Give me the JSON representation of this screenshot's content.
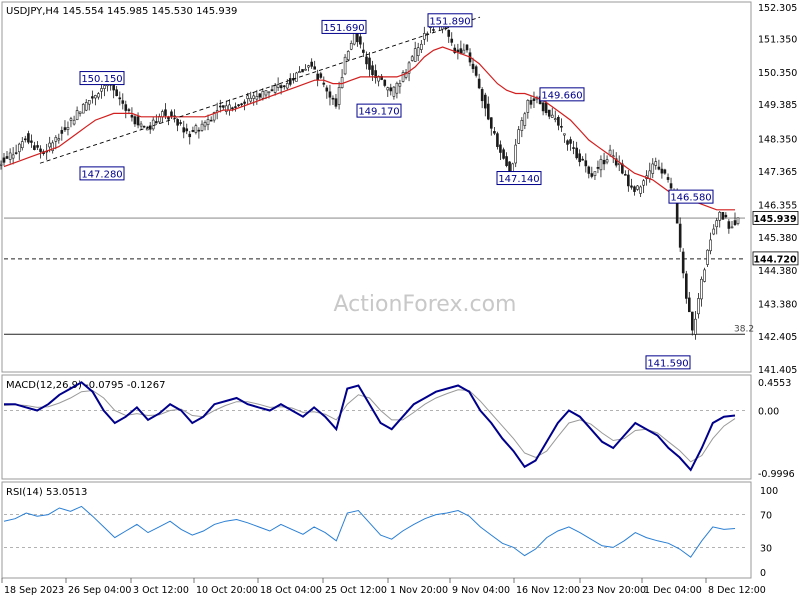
{
  "chart_data": [
    {
      "type": "candlestick",
      "panel": "price",
      "symbol_line": "USDJPY,H4  145.554 145.985 145.530 145.939",
      "watermark": "ActionForex.com",
      "ylim": [
        141.405,
        152.305
      ],
      "y_ticks": [
        "152.305",
        "151.350",
        "150.350",
        "149.385",
        "148.350",
        "147.365",
        "146.355",
        "145.380",
        "144.380",
        "143.380",
        "142.405",
        "141.405"
      ],
      "current_price": "145.939",
      "level_labels": {
        "support": "144.720",
        "fib": "38.2"
      },
      "annotations": [
        "150.150",
        "147.280",
        "151.690",
        "151.890",
        "149.170",
        "149.660",
        "147.140",
        "146.580",
        "141.590"
      ],
      "series": [
        {
          "name": "price",
          "values": [
            147.8,
            148.0,
            148.4,
            148.1,
            147.9,
            148.2,
            148.6,
            148.9,
            149.2,
            149.5,
            149.8,
            150.0,
            149.6,
            149.3,
            148.9,
            148.6,
            148.8,
            149.1,
            149.0,
            148.7,
            148.5,
            148.7,
            148.9,
            149.2,
            149.3,
            149.4,
            149.5,
            149.6,
            149.7,
            149.8,
            149.9,
            150.1,
            150.3,
            150.6,
            150.2,
            149.8,
            149.3,
            150.8,
            151.5,
            150.9,
            150.3,
            150.0,
            149.7,
            150.1,
            150.6,
            151.1,
            151.6,
            151.8,
            151.6,
            150.9,
            151.1,
            150.5,
            149.6,
            148.6,
            148.0,
            147.3,
            148.5,
            149.4,
            149.5,
            149.2,
            148.9,
            148.4,
            148.0,
            147.6,
            147.3,
            147.6,
            147.9,
            147.5,
            147.0,
            146.8,
            147.2,
            147.6,
            147.3,
            146.6,
            144.2,
            142.5,
            144.0,
            145.4,
            146.2,
            145.7,
            145.939
          ]
        },
        {
          "name": "MA",
          "values": [
            147.5,
            147.6,
            147.7,
            147.8,
            147.9,
            148.0,
            148.1,
            148.3,
            148.5,
            148.7,
            148.9,
            149.0,
            149.1,
            149.1,
            149.1,
            149.0,
            149.0,
            149.0,
            149.0,
            149.0,
            149.0,
            149.0,
            149.0,
            149.1,
            149.2,
            149.2,
            149.3,
            149.4,
            149.5,
            149.6,
            149.7,
            149.8,
            149.9,
            150.0,
            150.1,
            150.1,
            150.0,
            150.0,
            150.1,
            150.2,
            150.2,
            150.2,
            150.2,
            150.2,
            150.3,
            150.5,
            150.8,
            151.0,
            151.1,
            151.0,
            150.9,
            150.8,
            150.6,
            150.3,
            150.0,
            149.8,
            149.7,
            149.7,
            149.6,
            149.5,
            149.3,
            149.1,
            148.9,
            148.6,
            148.3,
            148.1,
            147.9,
            147.7,
            147.5,
            147.3,
            147.2,
            147.1,
            146.9,
            146.7,
            146.6,
            146.5,
            146.4,
            146.3,
            146.2,
            146.2,
            146.2
          ]
        }
      ]
    },
    {
      "type": "line",
      "panel": "macd",
      "label": "MACD(12,26,9) -0.0795 -0.1267",
      "y_ticks": [
        "0.4553",
        "0.00",
        "-0.9996"
      ],
      "series": [
        {
          "name": "MACD",
          "values": [
            0.1,
            0.1,
            0.05,
            0.0,
            0.1,
            0.25,
            0.35,
            0.45,
            0.3,
            0.0,
            -0.2,
            -0.1,
            0.05,
            -0.15,
            -0.05,
            0.1,
            0.0,
            -0.2,
            -0.1,
            0.1,
            0.15,
            0.2,
            0.1,
            0.05,
            0.0,
            0.1,
            0.0,
            -0.1,
            0.05,
            -0.1,
            -0.3,
            0.35,
            0.4,
            0.1,
            -0.2,
            -0.3,
            -0.1,
            0.1,
            0.2,
            0.3,
            0.35,
            0.4,
            0.3,
            0.0,
            -0.2,
            -0.45,
            -0.65,
            -0.9,
            -0.8,
            -0.5,
            -0.2,
            0.0,
            -0.1,
            -0.3,
            -0.5,
            -0.6,
            -0.4,
            -0.2,
            -0.3,
            -0.4,
            -0.6,
            -0.75,
            -0.95,
            -0.6,
            -0.2,
            -0.1,
            -0.08
          ]
        },
        {
          "name": "Signal",
          "values": [
            0.08,
            0.09,
            0.08,
            0.05,
            0.06,
            0.12,
            0.2,
            0.3,
            0.32,
            0.2,
            0.0,
            -0.08,
            -0.05,
            -0.08,
            -0.07,
            0.0,
            0.02,
            -0.08,
            -0.1,
            0.0,
            0.08,
            0.14,
            0.14,
            0.1,
            0.05,
            0.06,
            0.04,
            -0.03,
            -0.02,
            -0.06,
            -0.15,
            0.1,
            0.25,
            0.2,
            0.0,
            -0.15,
            -0.15,
            -0.03,
            0.1,
            0.2,
            0.27,
            0.33,
            0.32,
            0.15,
            -0.05,
            -0.25,
            -0.45,
            -0.68,
            -0.75,
            -0.65,
            -0.42,
            -0.2,
            -0.15,
            -0.22,
            -0.36,
            -0.48,
            -0.45,
            -0.32,
            -0.3,
            -0.36,
            -0.5,
            -0.64,
            -0.82,
            -0.72,
            -0.45,
            -0.25,
            -0.13
          ]
        }
      ]
    },
    {
      "type": "line",
      "panel": "rsi",
      "label": "RSI(14) 53.0513",
      "y_ticks": [
        "100",
        "70",
        "30",
        "0"
      ],
      "series": [
        {
          "name": "RSI",
          "values": [
            62,
            65,
            72,
            68,
            70,
            78,
            74,
            80,
            68,
            55,
            42,
            50,
            58,
            48,
            55,
            62,
            52,
            45,
            50,
            58,
            62,
            64,
            60,
            55,
            50,
            58,
            52,
            46,
            55,
            48,
            38,
            72,
            75,
            60,
            45,
            40,
            50,
            58,
            65,
            70,
            72,
            75,
            68,
            55,
            45,
            35,
            30,
            20,
            28,
            42,
            50,
            55,
            48,
            40,
            32,
            30,
            38,
            48,
            42,
            38,
            35,
            28,
            18,
            38,
            55,
            52,
            53
          ]
        }
      ]
    },
    {
      "type": "x-axis",
      "x_ticks": [
        "18 Sep 2023",
        "26 Sep 04:00",
        "3 Oct 12:00",
        "10 Oct 20:00",
        "18 Oct 04:00",
        "25 Oct 12:00",
        "1 Nov 20:00",
        "9 Nov 04:00",
        "16 Nov 12:00",
        "23 Nov 20:00",
        "1 Dec 04:00",
        "8 Dec 12:00"
      ]
    }
  ]
}
